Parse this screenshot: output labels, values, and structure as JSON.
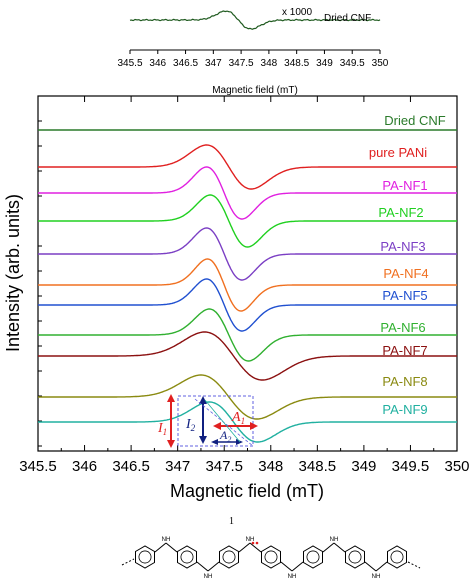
{
  "inset": {
    "scale_label": "x 1000",
    "legend_label": "Dried CNF",
    "xlabel": "Magnetic field (mT)",
    "xticks": [
      "345.5",
      "346",
      "346.5",
      "347",
      "347.5",
      "348",
      "348.5",
      "349",
      "349.5",
      "350"
    ],
    "color": "#1f5a1f"
  },
  "main": {
    "xlabel": "Magnetic field (mT)",
    "ylabel": "Intensity (arb. units)",
    "xticks": [
      "345.5",
      "346",
      "346.5",
      "347",
      "347.5",
      "348",
      "348.5",
      "349",
      "349.5",
      "350"
    ]
  },
  "annotations": {
    "I1": "I",
    "I1_sub": "1",
    "I2": "I",
    "I2_sub": "2",
    "A1": "A",
    "A1_sub": "1",
    "A2": "A",
    "A2_sub": "2"
  },
  "footer": {
    "number": "1",
    "nh_labels": [
      "NH",
      "NH",
      "NH",
      "NH",
      "NH",
      "NH",
      "NH"
    ]
  },
  "chart_data": [
    {
      "type": "line",
      "x": [
        345.5,
        350
      ],
      "xlabel": "Magnetic field (mT)",
      "xlim": [
        345.5,
        350
      ],
      "series": [
        {
          "name": "Dried CNF",
          "color": "#1f5a1f",
          "center": 347.45,
          "peak_to_peak_width": 0.45,
          "relative_amplitude": 1.0
        }
      ],
      "annotations": [
        "x 1000"
      ]
    },
    {
      "type": "line",
      "xlabel": "Magnetic field (mT)",
      "ylabel": "Intensity (arb. units)",
      "xlim": [
        345.5,
        350
      ],
      "series": [
        {
          "name": "Dried CNF",
          "color": "#2a7a2a",
          "center": 347.5,
          "peak_to_peak_width": 0.5,
          "relative_amplitude": 0.0
        },
        {
          "name": "pure PANi",
          "color": "#e02020",
          "center": 347.55,
          "peak_to_peak_width": 0.48,
          "relative_amplitude": 0.8
        },
        {
          "name": "PA-NF1",
          "color": "#e020e0",
          "center": 347.5,
          "peak_to_peak_width": 0.38,
          "relative_amplitude": 1.0
        },
        {
          "name": "PA-NF2",
          "color": "#20d020",
          "center": 347.55,
          "peak_to_peak_width": 0.4,
          "relative_amplitude": 1.0
        },
        {
          "name": "PA-NF3",
          "color": "#7b3fc4",
          "center": 347.5,
          "peak_to_peak_width": 0.38,
          "relative_amplitude": 1.0
        },
        {
          "name": "PA-NF4",
          "color": "#f07020",
          "center": 347.5,
          "peak_to_peak_width": 0.36,
          "relative_amplitude": 1.0
        },
        {
          "name": "PA-NF5",
          "color": "#2050d0",
          "center": 347.5,
          "peak_to_peak_width": 0.38,
          "relative_amplitude": 1.0
        },
        {
          "name": "PA-NF6",
          "color": "#30b030",
          "center": 347.55,
          "peak_to_peak_width": 0.42,
          "relative_amplitude": 1.0
        },
        {
          "name": "PA-NF7",
          "color": "#8b1010",
          "center": 347.6,
          "peak_to_peak_width": 0.62,
          "relative_amplitude": 0.9
        },
        {
          "name": "PA-NF8",
          "color": "#8a8a10",
          "center": 347.55,
          "peak_to_peak_width": 0.6,
          "relative_amplitude": 0.85
        },
        {
          "name": "PA-NF9",
          "color": "#20b0a0",
          "center": 347.6,
          "peak_to_peak_width": 0.52,
          "relative_amplitude": 0.8
        }
      ]
    }
  ]
}
